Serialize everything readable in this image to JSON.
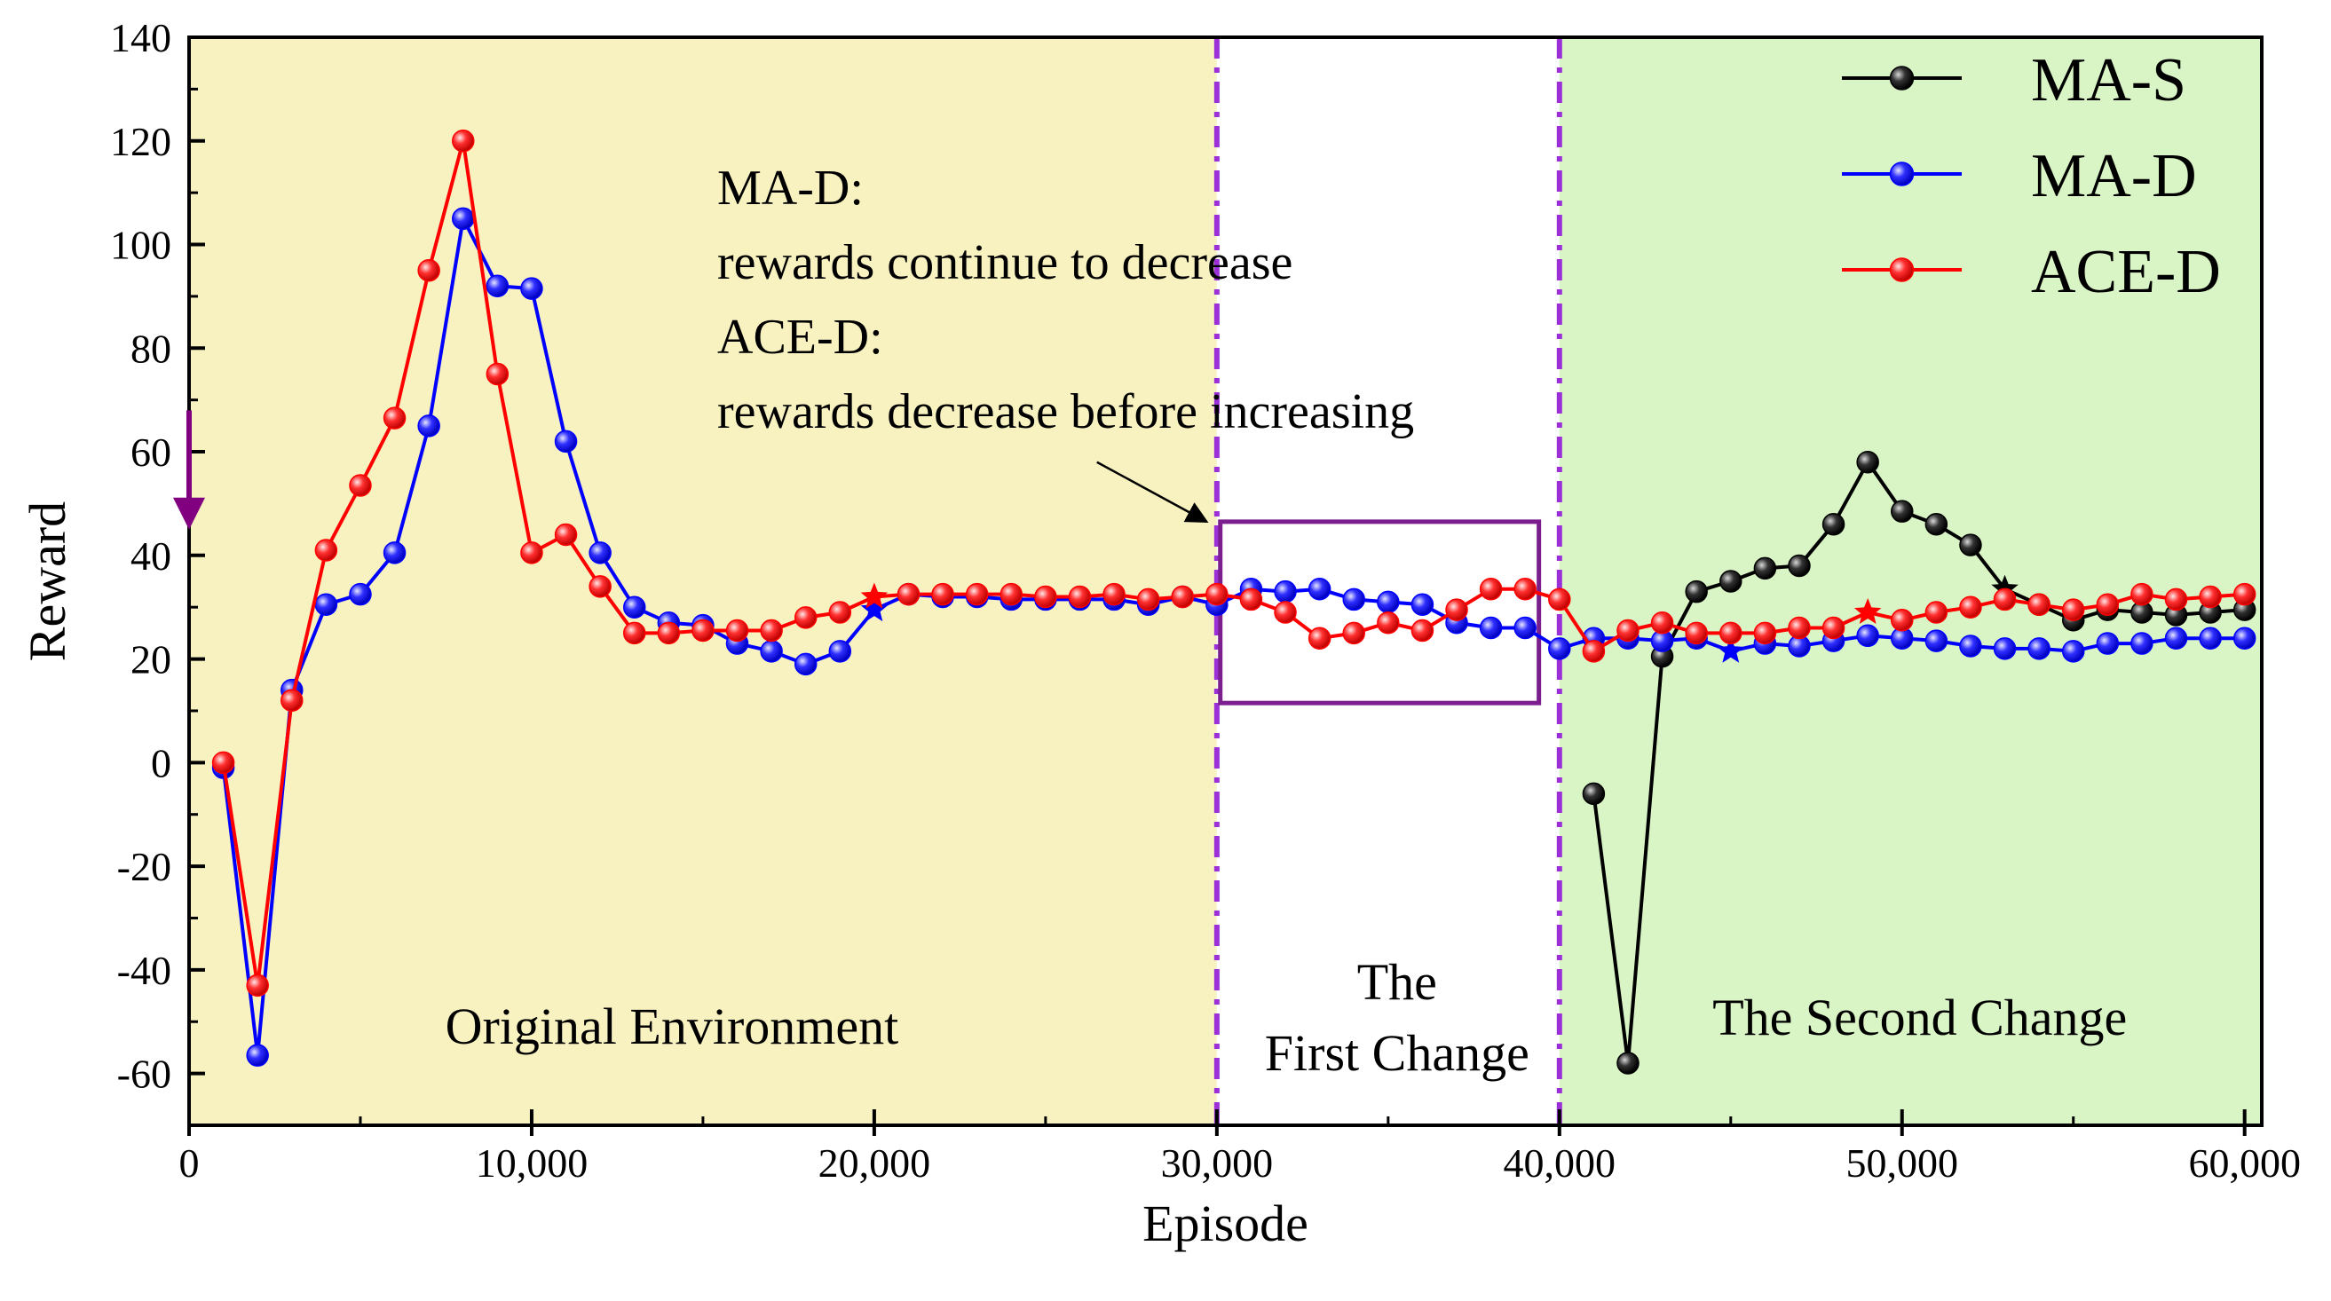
{
  "chart_data": {
    "type": "line",
    "title": "",
    "xlabel": "Episode",
    "ylabel": "Reward",
    "xlim": [
      0,
      60500
    ],
    "ylim": [
      -70,
      140
    ],
    "x_ticks": [
      0,
      10000,
      20000,
      30000,
      40000,
      50000,
      60000
    ],
    "x_tick_labels": [
      "0",
      "10,000",
      "20,000",
      "30,000",
      "40,000",
      "50,000",
      "60,000"
    ],
    "y_ticks": [
      -60,
      -40,
      -20,
      0,
      20,
      40,
      60,
      80,
      100,
      120,
      140
    ],
    "y_tick_labels": [
      "-60",
      "-40",
      "-20",
      "0",
      "20",
      "40",
      "60",
      "80",
      "100",
      "120",
      "140"
    ],
    "regions": [
      {
        "from": 0,
        "to": 30000,
        "color": "#f8f2c0",
        "label": [
          "Original Environment"
        ]
      },
      {
        "from": 30000,
        "to": 40000,
        "color": "#ffffff",
        "label": [
          "The",
          "First Change"
        ]
      },
      {
        "from": 40000,
        "to": 60500,
        "color": "#d9f5c5",
        "label": [
          "The Second Change"
        ]
      }
    ],
    "boundaries": [
      30000,
      40000
    ],
    "boundary_color": "#9b30d9",
    "highlight_box": {
      "x_from": 30100,
      "x_to": 39400,
      "y_from": 11.5,
      "y_to": 46.5,
      "color": "#7b1f8f"
    },
    "annotation": {
      "lines": [
        "MA-D:",
        "rewards continue to decrease",
        "ACE-D:",
        "rewards decrease before increasing"
      ],
      "arrow_from": [
        26500,
        58
      ],
      "arrow_to": [
        29700,
        46.5
      ]
    },
    "origin_arrow": {
      "x": 0,
      "y_from": 68,
      "y_to": 46,
      "color": "#800080"
    },
    "legend": {
      "position": "top-right"
    },
    "series": [
      {
        "name": "MA-S",
        "color": "#000000",
        "x": [
          41000,
          42000,
          43000,
          44000,
          45000,
          46000,
          47000,
          48000,
          49000,
          50000,
          51000,
          52000,
          53000,
          54000,
          55000,
          56000,
          57000,
          58000,
          59000,
          60000
        ],
        "values": [
          -6,
          -58,
          20.5,
          33,
          35,
          37.5,
          38,
          46,
          58,
          48.5,
          46,
          42,
          33.5,
          30.5,
          27.5,
          29.5,
          29,
          28.5,
          29,
          29.5
        ],
        "star_at": [
          53000
        ]
      },
      {
        "name": "MA-D",
        "color": "#0000ff",
        "x": [
          1000,
          2000,
          3000,
          4000,
          5000,
          6000,
          7000,
          8000,
          9000,
          10000,
          11000,
          12000,
          13000,
          14000,
          15000,
          16000,
          17000,
          18000,
          19000,
          20000,
          21000,
          22000,
          23000,
          24000,
          25000,
          26000,
          27000,
          28000,
          29000,
          30000,
          31000,
          32000,
          33000,
          34000,
          35000,
          36000,
          37000,
          38000,
          39000,
          40000,
          41000,
          42000,
          43000,
          44000,
          45000,
          46000,
          47000,
          48000,
          49000,
          50000,
          51000,
          52000,
          53000,
          54000,
          55000,
          56000,
          57000,
          58000,
          59000,
          60000
        ],
        "values": [
          -1,
          -56.5,
          14,
          30.5,
          32.5,
          40.5,
          65,
          105,
          92,
          91.5,
          62,
          40.5,
          30,
          27,
          26.5,
          23,
          21.5,
          19,
          21.5,
          29.5,
          32.5,
          32,
          32,
          31.5,
          31.5,
          31.5,
          31.5,
          30.5,
          32,
          30.5,
          33.5,
          33,
          33.5,
          31.5,
          31,
          30.5,
          27,
          26,
          26,
          22,
          24,
          24,
          23.5,
          24,
          21.5,
          23,
          22.5,
          23.5,
          24.5,
          24,
          23.5,
          22.5,
          22,
          22,
          21.5,
          23,
          23,
          24,
          24,
          24
        ],
        "star_at": [
          20000,
          45000
        ]
      },
      {
        "name": "ACE-D",
        "color": "#ff0000",
        "x": [
          1000,
          2000,
          3000,
          4000,
          5000,
          6000,
          7000,
          8000,
          9000,
          10000,
          11000,
          12000,
          13000,
          14000,
          15000,
          16000,
          17000,
          18000,
          19000,
          20000,
          21000,
          22000,
          23000,
          24000,
          25000,
          26000,
          27000,
          28000,
          29000,
          30000,
          31000,
          32000,
          33000,
          34000,
          35000,
          36000,
          37000,
          38000,
          39000,
          40000,
          41000,
          42000,
          43000,
          44000,
          45000,
          46000,
          47000,
          48000,
          49000,
          50000,
          51000,
          52000,
          53000,
          54000,
          55000,
          56000,
          57000,
          58000,
          59000,
          60000
        ],
        "values": [
          0,
          -43,
          12,
          41,
          53.5,
          66.5,
          95,
          120,
          75,
          40.5,
          44,
          34,
          25,
          25,
          25.5,
          25.5,
          25.5,
          28,
          29,
          32,
          32.5,
          32.5,
          32.5,
          32.5,
          32,
          32,
          32.5,
          31.5,
          32,
          32.5,
          31.5,
          29,
          24,
          25,
          27,
          25.5,
          29.5,
          33.5,
          33.5,
          31.5,
          21.5,
          25.5,
          27,
          25,
          25,
          25,
          26,
          26,
          29,
          27.5,
          29,
          30,
          31.5,
          30.5,
          29.5,
          30.5,
          32.5,
          31.5,
          32,
          32.5
        ],
        "star_at": [
          20000,
          49000
        ]
      }
    ]
  }
}
